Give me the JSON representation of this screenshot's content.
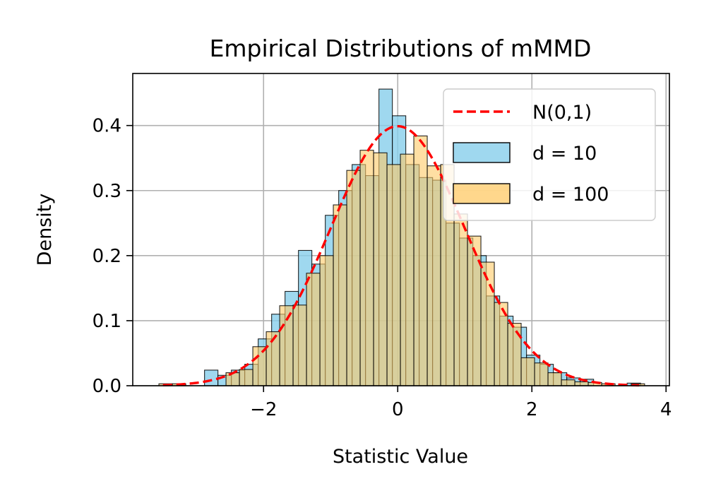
{
  "chart_data": {
    "type": "histogram",
    "title": "Empirical Distributions of mMMD",
    "xlabel": "Statistic Value",
    "ylabel": "Density",
    "xlim": [
      -3.95,
      4.05
    ],
    "ylim": [
      0.0,
      0.48
    ],
    "xticks": [
      -2,
      0,
      2,
      4
    ],
    "xtick_labels": [
      "−2",
      "0",
      "2",
      "4"
    ],
    "yticks": [
      0.0,
      0.1,
      0.2,
      0.3,
      0.4
    ],
    "ytick_labels": [
      "0.0",
      "0.1",
      "0.2",
      "0.3",
      "0.4"
    ],
    "grid": true,
    "legend_position": "upper right",
    "legend": [
      "N(0,1)",
      "d = 10",
      "d = 100"
    ],
    "colors": {
      "d10": "#87ceeb",
      "d100": "#ffc966",
      "normal": "#ff0000",
      "grid": "#b0b0b0",
      "edge": "#000000"
    },
    "series": [
      {
        "name": "d = 10",
        "bins": [
          [
            -2.88,
            -2.68,
            0.024
          ],
          [
            -2.68,
            -2.48,
            0.016
          ],
          [
            -2.48,
            -2.28,
            0.024
          ],
          [
            -2.28,
            -2.08,
            0.033
          ],
          [
            -2.08,
            -1.88,
            0.072
          ],
          [
            -1.88,
            -1.68,
            0.11
          ],
          [
            -1.68,
            -1.48,
            0.145
          ],
          [
            -1.48,
            -1.28,
            0.208
          ],
          [
            -1.28,
            -1.08,
            0.187
          ],
          [
            -1.08,
            -0.88,
            0.262
          ],
          [
            -0.88,
            -0.68,
            0.3
          ],
          [
            -0.68,
            -0.48,
            0.34
          ],
          [
            -0.48,
            -0.28,
            0.323
          ],
          [
            -0.28,
            -0.08,
            0.456
          ],
          [
            -0.08,
            0.12,
            0.415
          ],
          [
            0.12,
            0.32,
            0.34
          ],
          [
            0.32,
            0.52,
            0.32
          ],
          [
            0.52,
            0.72,
            0.316
          ],
          [
            0.72,
            0.92,
            0.25
          ],
          [
            0.92,
            1.12,
            0.227
          ],
          [
            1.12,
            1.32,
            0.2
          ],
          [
            1.32,
            1.52,
            0.138
          ],
          [
            1.52,
            1.72,
            0.107
          ],
          [
            1.72,
            1.92,
            0.09
          ],
          [
            1.92,
            2.12,
            0.047
          ],
          [
            2.12,
            2.32,
            0.033
          ],
          [
            2.32,
            2.52,
            0.02
          ],
          [
            2.52,
            2.72,
            0.012
          ],
          [
            2.72,
            2.92,
            0.01
          ],
          [
            3.42,
            3.62,
            0.004
          ]
        ]
      },
      {
        "name": "d = 100",
        "bins": [
          [
            -3.56,
            -3.36,
            0.003
          ],
          [
            -3.36,
            -3.16,
            0.003
          ],
          [
            -2.56,
            -2.36,
            0.02
          ],
          [
            -2.36,
            -2.16,
            0.025
          ],
          [
            -2.16,
            -1.96,
            0.06
          ],
          [
            -1.96,
            -1.76,
            0.083
          ],
          [
            -1.76,
            -1.56,
            0.123
          ],
          [
            -1.56,
            -1.36,
            0.124
          ],
          [
            -1.36,
            -1.16,
            0.173
          ],
          [
            -1.16,
            -0.96,
            0.2
          ],
          [
            -0.96,
            -0.76,
            0.278
          ],
          [
            -0.76,
            -0.56,
            0.331
          ],
          [
            -0.56,
            -0.36,
            0.362
          ],
          [
            -0.36,
            -0.16,
            0.358
          ],
          [
            -0.16,
            0.04,
            0.34
          ],
          [
            0.04,
            0.24,
            0.356
          ],
          [
            0.24,
            0.44,
            0.384
          ],
          [
            0.44,
            0.64,
            0.338
          ],
          [
            0.64,
            0.84,
            0.34
          ],
          [
            0.84,
            1.04,
            0.264
          ],
          [
            1.04,
            1.24,
            0.23
          ],
          [
            1.24,
            1.44,
            0.19
          ],
          [
            1.44,
            1.64,
            0.128
          ],
          [
            1.64,
            1.84,
            0.096
          ],
          [
            1.84,
            2.04,
            0.043
          ],
          [
            2.04,
            2.24,
            0.035
          ],
          [
            2.24,
            2.44,
            0.02
          ],
          [
            2.44,
            2.64,
            0.009
          ],
          [
            2.64,
            2.84,
            0.006
          ],
          [
            2.84,
            3.04,
            0.005
          ],
          [
            3.04,
            3.24,
            0.003
          ],
          [
            3.48,
            3.68,
            0.003
          ]
        ]
      },
      {
        "name": "N(0,1)",
        "style": "dashed",
        "function": "normal_pdf",
        "mean": 0,
        "std": 1,
        "x_range": [
          -3.5,
          3.6
        ]
      }
    ]
  }
}
